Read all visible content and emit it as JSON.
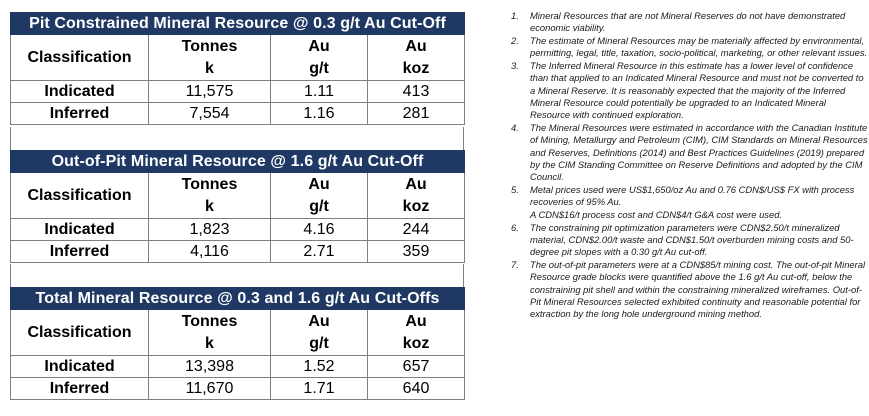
{
  "tables": [
    {
      "title": "Pit Constrained Mineral Resource @ 0.3 g/t Au Cut-Off",
      "headers": [
        {
          "line1": "Classification",
          "line2": ""
        },
        {
          "line1": "Tonnes",
          "line2": "k"
        },
        {
          "line1": "Au",
          "line2": "g/t"
        },
        {
          "line1": "Au",
          "line2": "koz"
        }
      ],
      "rows": [
        {
          "class": "Indicated",
          "tonnes": "11,575",
          "grade": "1.11",
          "koz": "413"
        },
        {
          "class": "Inferred",
          "tonnes": "7,554",
          "grade": "1.16",
          "koz": "281"
        }
      ]
    },
    {
      "title": "Out-of-Pit Mineral Resource @ 1.6 g/t Au Cut-Off",
      "headers": [
        {
          "line1": "Classification",
          "line2": ""
        },
        {
          "line1": "Tonnes",
          "line2": "k"
        },
        {
          "line1": "Au",
          "line2": "g/t"
        },
        {
          "line1": "Au",
          "line2": "koz"
        }
      ],
      "rows": [
        {
          "class": "Indicated",
          "tonnes": "1,823",
          "grade": "4.16",
          "koz": "244"
        },
        {
          "class": "Inferred",
          "tonnes": "4,116",
          "grade": "2.71",
          "koz": "359"
        }
      ]
    },
    {
      "title": "Total Mineral Resource @ 0.3 and 1.6 g/t Au Cut-Offs",
      "headers": [
        {
          "line1": "Classification",
          "line2": ""
        },
        {
          "line1": "Tonnes",
          "line2": "k"
        },
        {
          "line1": "Au",
          "line2": "g/t"
        },
        {
          "line1": "Au",
          "line2": "koz"
        }
      ],
      "rows": [
        {
          "class": "Indicated",
          "tonnes": "13,398",
          "grade": "1.52",
          "koz": "657"
        },
        {
          "class": "Inferred",
          "tonnes": "11,670",
          "grade": "1.71",
          "koz": "640"
        }
      ]
    }
  ],
  "notes": [
    {
      "num": "1.",
      "text": "Mineral Resources that are not Mineral Reserves do not have demonstrated economic viability.",
      "extra": ""
    },
    {
      "num": "2.",
      "text": "The estimate of Mineral Resources may be materially affected by environmental, permitting, legal, title, taxation, socio-political, marketing, or other relevant issues.",
      "extra": ""
    },
    {
      "num": "3.",
      "text": "The Inferred Mineral Resource in this estimate has a lower level of confidence than that applied to an Indicated Mineral Resource and must not be converted to a Mineral Reserve. It is reasonably expected that the majority of the Inferred Mineral Resource could potentially be upgraded to an Indicated Mineral Resource with continued exploration.",
      "extra": ""
    },
    {
      "num": "4.",
      "text": "The Mineral Resources were estimated in accordance with the Canadian Institute of Mining, Metallurgy and Petroleum (CIM), CIM Standards on Mineral Resources and Reserves, Definitions (2014) and Best Practices Guidelines (2019) prepared by the CIM Standing Committee on Reserve Definitions and adopted by the CIM Council.",
      "extra": ""
    },
    {
      "num": "5.",
      "text": "Metal prices used were US$1,650/oz Au and 0.76 CDN$/US$ FX with process recoveries of 95% Au.",
      "extra": "A CDN$16/t process cost and CDN$4/t G&A cost were used."
    },
    {
      "num": "6.",
      "text": "The constraining pit optimization parameters were CDN$2.50/t mineralized material, CDN$2.00/t waste and CDN$1.50/t overburden mining costs and  50-degree pit slopes with a 0.30 g/t Au cut-off.",
      "extra": ""
    },
    {
      "num": "7.",
      "text": "The out-of-pit parameters were at a CDN$85/t mining cost. The out-of-pit Mineral Resource grade blocks were quantified above the 1.6 g/t Au cut-off, below the constraining pit shell and within the constraining mineralized wireframes. Out-of-Pit Mineral Resources selected exhibited continuity and reasonable potential for extraction by the long hole underground mining method.",
      "extra": ""
    }
  ]
}
